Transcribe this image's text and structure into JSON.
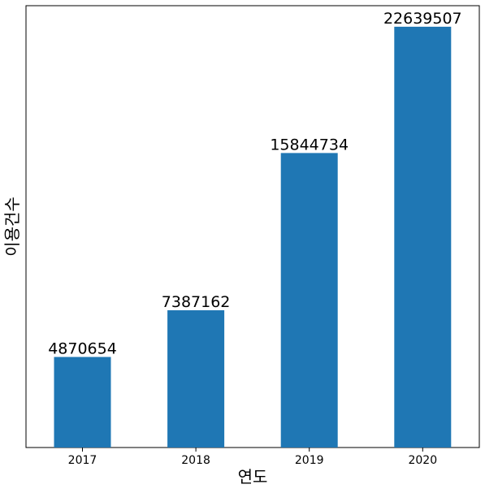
{
  "chart_data": {
    "type": "bar",
    "categories": [
      "2017",
      "2018",
      "2019",
      "2020"
    ],
    "values": [
      4870654,
      7387162,
      15844734,
      22639507
    ],
    "data_labels": [
      "4870654",
      "7387162",
      "15844734",
      "22639507"
    ],
    "title": "",
    "xlabel": "연도",
    "ylabel": "이용건수",
    "ylim": [
      0,
      23772000
    ],
    "y_ticks_shown": false,
    "grid": false,
    "legend": "none",
    "bar_color": "#1f77b4"
  }
}
